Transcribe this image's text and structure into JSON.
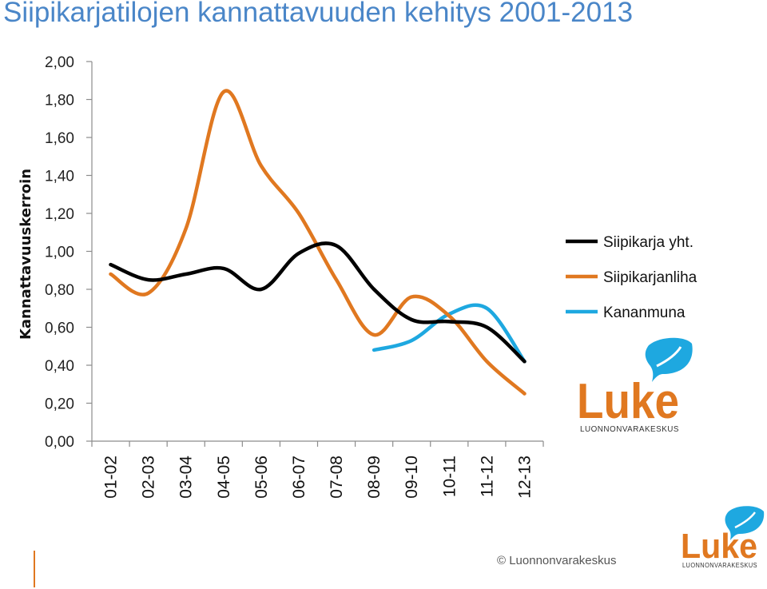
{
  "page": {
    "title": "Siipikarjatilojen kannattavuuden kehitys 2001-2013",
    "copyright": "© Luonnonvarakeskus"
  },
  "logo": {
    "word": "Luke",
    "subtitle": "LUONNONVARAKESKUS"
  },
  "colors": {
    "title": "#4a86c8",
    "accent": "#e07820"
  },
  "chart_data": {
    "type": "line",
    "title": "Siipikarjatilojen kannattavuuden kehitys 2001-2013",
    "ylabel": "Kannattavuuskerroin",
    "xlabel": "",
    "categories": [
      "01-02",
      "02-03",
      "03-04",
      "04-05",
      "05-06",
      "06-07",
      "07-08",
      "08-09",
      "09-10",
      "10-11",
      "11-12",
      "12-13"
    ],
    "ylim": [
      0,
      2
    ],
    "yticks": [
      "0,00",
      "0,20",
      "0,40",
      "0,60",
      "0,80",
      "1,00",
      "1,20",
      "1,40",
      "1,60",
      "1,80",
      "2,00"
    ],
    "legend_position": "right",
    "grid": false,
    "series": [
      {
        "name": "Siipikarja yht.",
        "color": "#000000",
        "values": [
          0.93,
          0.85,
          0.88,
          0.91,
          0.8,
          0.99,
          1.03,
          0.8,
          0.64,
          0.63,
          0.6,
          0.42
        ]
      },
      {
        "name": "Siipikarjanliha",
        "color": "#e07820",
        "values": [
          0.88,
          0.78,
          1.12,
          1.84,
          1.45,
          1.2,
          0.85,
          0.56,
          0.76,
          0.66,
          0.42,
          0.25
        ]
      },
      {
        "name": "Kananmuna",
        "color": "#1ea8e0",
        "values": [
          null,
          null,
          null,
          null,
          null,
          null,
          null,
          0.48,
          0.53,
          0.67,
          0.7,
          0.42
        ]
      }
    ]
  }
}
